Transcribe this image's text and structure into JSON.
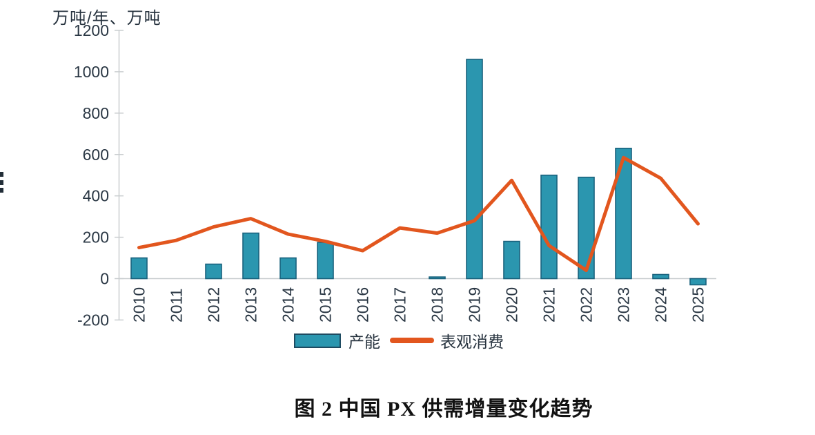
{
  "chart_data": {
    "type": "bar",
    "title": "图 2 中国 PX 供需增量变化趋势",
    "categories": [
      "2010",
      "2011",
      "2012",
      "2013",
      "2014",
      "2015",
      "2016",
      "2017",
      "2018",
      "2019",
      "2020",
      "2021",
      "2022",
      "2023",
      "2024",
      "2025"
    ],
    "series": [
      {
        "name": "产能",
        "type": "bar",
        "color": "#2B96AF",
        "border_color": "#1A627D",
        "values": [
          100,
          null,
          70,
          220,
          100,
          175,
          null,
          null,
          8,
          1060,
          180,
          500,
          490,
          630,
          20,
          -30
        ]
      },
      {
        "name": "表观消费",
        "type": "line",
        "color": "#E2561E",
        "values": [
          150,
          185,
          250,
          290,
          215,
          180,
          135,
          245,
          220,
          280,
          475,
          160,
          40,
          585,
          485,
          265
        ]
      }
    ],
    "xlabel": "",
    "ylabel": "万吨/年、万吨",
    "ylim": [
      -200,
      1200
    ],
    "ytick_step": 200,
    "yticks": [
      -200,
      0,
      200,
      400,
      600,
      800,
      1000,
      1200
    ],
    "grid": false,
    "legend_position": "bottom",
    "axis_color": "#C9CDCF",
    "text_color": "#2A3744"
  }
}
